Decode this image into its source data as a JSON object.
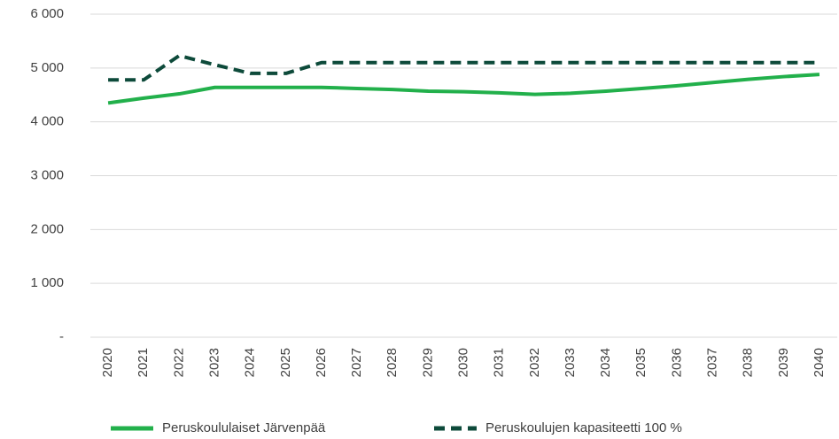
{
  "chart_data": {
    "type": "line",
    "x": [
      "2020",
      "2021",
      "2022",
      "2023",
      "2024",
      "2025",
      "2026",
      "2027",
      "2028",
      "2029",
      "2030",
      "2031",
      "2032",
      "2033",
      "2034",
      "2035",
      "2036",
      "2037",
      "2038",
      "2039",
      "2040"
    ],
    "series": [
      {
        "name": "Peruskoululaiset Järvenpää",
        "color": "#22b04b",
        "dashed": false,
        "values": [
          4350,
          4440,
          4520,
          4640,
          4640,
          4640,
          4640,
          4620,
          4600,
          4570,
          4560,
          4540,
          4510,
          4530,
          4570,
          4620,
          4670,
          4730,
          4790,
          4840,
          4880
        ]
      },
      {
        "name": "Peruskoulujen kapasiteetti 100 %",
        "color": "#0d4a3a",
        "dashed": true,
        "values": [
          4780,
          4780,
          5230,
          5060,
          4900,
          4900,
          5100,
          5100,
          5100,
          5100,
          5100,
          5100,
          5100,
          5100,
          5100,
          5100,
          5100,
          5100,
          5100,
          5100,
          5100
        ]
      }
    ],
    "ylim": [
      0,
      6000
    ],
    "yticks": [
      {
        "value": 0,
        "label": "-"
      },
      {
        "value": 1000,
        "label": "1 000"
      },
      {
        "value": 2000,
        "label": "2 000"
      },
      {
        "value": 3000,
        "label": "3 000"
      },
      {
        "value": 4000,
        "label": "4 000"
      },
      {
        "value": 5000,
        "label": "5 000"
      },
      {
        "value": 6000,
        "label": "6 000"
      }
    ],
    "grid": true,
    "legend": "bottom"
  }
}
